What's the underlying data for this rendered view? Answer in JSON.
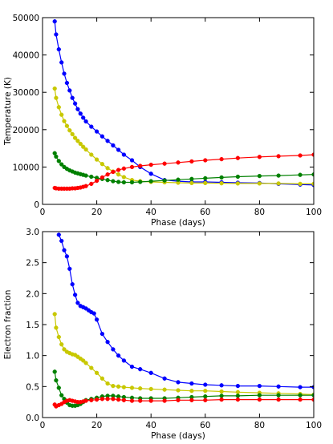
{
  "chart_data": [
    {
      "type": "line",
      "title": "",
      "xlabel": "Phase (days)",
      "ylabel": "Temperature (K)",
      "xlim": [
        0,
        100
      ],
      "ylim": [
        0,
        50000
      ],
      "xticks": [
        0,
        20,
        40,
        60,
        80,
        100
      ],
      "yticks": [
        0,
        10000,
        20000,
        30000,
        40000,
        50000
      ],
      "grid": false,
      "legend": "none",
      "series": [
        {
          "color": "#0000ff",
          "x": [
            4.5,
            5,
            6,
            7,
            8,
            9,
            10,
            11,
            12,
            13,
            14,
            15,
            16,
            18,
            20,
            22,
            24,
            26,
            28,
            30,
            33,
            36,
            40,
            45,
            50,
            55,
            60,
            66,
            72,
            80,
            87,
            95,
            100
          ],
          "y": [
            49000,
            45500,
            41500,
            38000,
            35000,
            32500,
            30500,
            28500,
            27000,
            25500,
            24300,
            23200,
            22200,
            20800,
            19500,
            18200,
            17000,
            15800,
            14600,
            13300,
            11800,
            10000,
            8200,
            6500,
            6200,
            6000,
            6000,
            5900,
            5800,
            5700,
            5500,
            5300,
            5200
          ]
        },
        {
          "color": "#c8c800",
          "x": [
            4.5,
            5,
            6,
            7,
            8,
            9,
            10,
            11,
            12,
            13,
            14,
            15,
            16,
            18,
            20,
            22,
            24,
            26,
            28,
            30,
            33,
            36,
            40,
            45,
            50,
            55,
            60,
            66,
            72,
            80,
            87,
            95,
            100
          ],
          "y": [
            31000,
            28500,
            26000,
            24000,
            22300,
            21000,
            19800,
            18800,
            17800,
            17000,
            16200,
            15400,
            14700,
            13300,
            12000,
            10800,
            9700,
            8800,
            8000,
            7300,
            6500,
            6200,
            6000,
            5900,
            5800,
            5700,
            5700,
            5650,
            5600,
            5600,
            5600,
            5500,
            5500
          ]
        },
        {
          "color": "#008000",
          "x": [
            4.5,
            5,
            6,
            7,
            8,
            9,
            10,
            11,
            12,
            13,
            14,
            15,
            16,
            18,
            20,
            22,
            24,
            26,
            28,
            30,
            33,
            36,
            40,
            45,
            50,
            55,
            60,
            66,
            72,
            80,
            87,
            95,
            100
          ],
          "y": [
            13700,
            12800,
            11600,
            10700,
            10000,
            9500,
            9100,
            8800,
            8500,
            8300,
            8100,
            7900,
            7700,
            7400,
            7100,
            6800,
            6500,
            6200,
            6000,
            5900,
            5900,
            6000,
            6200,
            6400,
            6600,
            6800,
            7000,
            7200,
            7400,
            7600,
            7700,
            7900,
            8000
          ]
        },
        {
          "color": "#ff0000",
          "x": [
            4.5,
            5,
            6,
            7,
            8,
            9,
            10,
            11,
            12,
            13,
            14,
            15,
            16,
            18,
            20,
            22,
            24,
            26,
            28,
            30,
            33,
            36,
            40,
            45,
            50,
            55,
            60,
            66,
            72,
            80,
            87,
            95,
            100
          ],
          "y": [
            4400,
            4300,
            4200,
            4200,
            4200,
            4200,
            4200,
            4300,
            4300,
            4400,
            4500,
            4700,
            4900,
            5500,
            6300,
            7200,
            8000,
            8700,
            9200,
            9600,
            10000,
            10300,
            10600,
            10900,
            11200,
            11500,
            11800,
            12100,
            12400,
            12700,
            12900,
            13100,
            13300
          ]
        }
      ]
    },
    {
      "type": "line",
      "title": "",
      "xlabel": "Phase (days)",
      "ylabel": "Electron fraction",
      "xlim": [
        0,
        100
      ],
      "ylim": [
        0,
        3.0
      ],
      "xticks": [
        0,
        20,
        40,
        60,
        80,
        100
      ],
      "yticks": [
        0.0,
        0.5,
        1.0,
        1.5,
        2.0,
        2.5,
        3.0
      ],
      "ytick_labels": [
        "0.0",
        "0.5",
        "1.0",
        "1.5",
        "2.0",
        "2.5",
        "3.0"
      ],
      "grid": false,
      "legend": "none",
      "series": [
        {
          "color": "#0000ff",
          "x": [
            6,
            7,
            8,
            9,
            10,
            11,
            12,
            13,
            14,
            15,
            16,
            17,
            18,
            19,
            20,
            22,
            24,
            26,
            28,
            30,
            33,
            36,
            40,
            45,
            50,
            55,
            60,
            66,
            72,
            80,
            87,
            95,
            100
          ],
          "y": [
            2.95,
            2.85,
            2.7,
            2.6,
            2.4,
            2.15,
            1.98,
            1.85,
            1.8,
            1.78,
            1.76,
            1.73,
            1.7,
            1.68,
            1.58,
            1.35,
            1.22,
            1.1,
            1.0,
            0.92,
            0.82,
            0.78,
            0.72,
            0.63,
            0.57,
            0.55,
            0.53,
            0.52,
            0.51,
            0.51,
            0.5,
            0.49,
            0.49
          ]
        },
        {
          "color": "#c8c800",
          "x": [
            4.5,
            5,
            6,
            7,
            8,
            9,
            10,
            11,
            12,
            13,
            14,
            15,
            16,
            18,
            20,
            22,
            24,
            26,
            28,
            30,
            33,
            36,
            40,
            45,
            50,
            55,
            60,
            66,
            72,
            80,
            87,
            95,
            100
          ],
          "y": [
            1.67,
            1.45,
            1.3,
            1.18,
            1.1,
            1.06,
            1.04,
            1.02,
            1.01,
            0.98,
            0.95,
            0.92,
            0.88,
            0.8,
            0.72,
            0.63,
            0.55,
            0.51,
            0.5,
            0.49,
            0.48,
            0.47,
            0.46,
            0.45,
            0.44,
            0.43,
            0.43,
            0.42,
            0.41,
            0.4,
            0.39,
            0.38,
            0.37
          ]
        },
        {
          "color": "#008000",
          "x": [
            4.5,
            5,
            6,
            7,
            8,
            9,
            10,
            11,
            12,
            13,
            14,
            15,
            16,
            18,
            20,
            22,
            24,
            26,
            28,
            30,
            33,
            36,
            40,
            45,
            50,
            55,
            60,
            66,
            72,
            80,
            87,
            95,
            100
          ],
          "y": [
            0.74,
            0.6,
            0.48,
            0.36,
            0.3,
            0.24,
            0.2,
            0.19,
            0.19,
            0.2,
            0.22,
            0.25,
            0.28,
            0.3,
            0.32,
            0.34,
            0.35,
            0.35,
            0.34,
            0.33,
            0.32,
            0.31,
            0.31,
            0.31,
            0.32,
            0.33,
            0.34,
            0.35,
            0.35,
            0.36,
            0.36,
            0.36,
            0.36
          ]
        },
        {
          "color": "#ff0000",
          "x": [
            4.5,
            5,
            6,
            7,
            8,
            9,
            10,
            11,
            12,
            13,
            14,
            15,
            16,
            18,
            20,
            22,
            24,
            26,
            28,
            30,
            33,
            36,
            40,
            45,
            50,
            55,
            60,
            66,
            72,
            80,
            87,
            95,
            100
          ],
          "y": [
            0.21,
            0.18,
            0.2,
            0.22,
            0.25,
            0.27,
            0.28,
            0.27,
            0.26,
            0.25,
            0.25,
            0.26,
            0.27,
            0.28,
            0.29,
            0.3,
            0.3,
            0.3,
            0.29,
            0.28,
            0.27,
            0.27,
            0.27,
            0.27,
            0.28,
            0.28,
            0.28,
            0.29,
            0.29,
            0.29,
            0.29,
            0.29,
            0.29
          ]
        }
      ]
    }
  ]
}
